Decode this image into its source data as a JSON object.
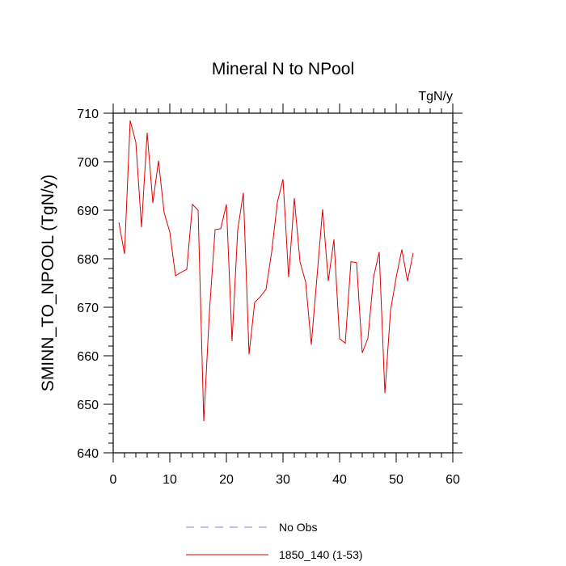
{
  "chart_data": {
    "type": "line",
    "title": "Mineral N to NPool",
    "units_label": "TgN/y",
    "ylabel": "SMINN_TO_NPOOL  (TgN/y)",
    "xlabel": "",
    "xlim": [
      0,
      60
    ],
    "ylim": [
      640,
      710
    ],
    "x_ticks": [
      0,
      10,
      20,
      30,
      40,
      50,
      60
    ],
    "y_ticks": [
      640,
      650,
      660,
      670,
      680,
      690,
      700,
      710
    ],
    "grid": false,
    "legend_placement": "bottom",
    "legend": [
      {
        "label": "No Obs",
        "color": "#8080e0",
        "style": "dashed"
      },
      {
        "label": "1850_140 (1-53)",
        "color": "#e00000",
        "style": "solid"
      }
    ],
    "series": [
      {
        "name": "1850_140 (1-53)",
        "color": "#e00000",
        "x": [
          1,
          2,
          3,
          4,
          5,
          6,
          7,
          8,
          9,
          10,
          11,
          12,
          13,
          14,
          15,
          16,
          17,
          18,
          19,
          20,
          21,
          22,
          23,
          24,
          25,
          26,
          27,
          28,
          29,
          30,
          31,
          32,
          33,
          34,
          35,
          36,
          37,
          38,
          39,
          40,
          41,
          42,
          43,
          44,
          45,
          46,
          47,
          48,
          49,
          50,
          51,
          52,
          53
        ],
        "values": [
          687.5,
          681.0,
          708.5,
          704.0,
          686.5,
          706.0,
          691.5,
          700.2,
          689.5,
          685.5,
          676.5,
          677.2,
          677.8,
          691.2,
          690.0,
          646.5,
          669.0,
          686.0,
          686.2,
          691.2,
          663.0,
          686.0,
          693.6,
          660.3,
          671.0,
          672.2,
          673.7,
          681.4,
          691.6,
          696.4,
          676.2,
          692.5,
          679.4,
          675.2,
          662.3,
          676.2,
          690.2,
          675.4,
          684.0,
          663.5,
          662.6,
          679.4,
          679.2,
          660.6,
          663.6,
          676.2,
          681.4,
          652.3,
          669.3,
          676.2,
          681.9,
          675.4,
          681.2
        ]
      }
    ]
  }
}
